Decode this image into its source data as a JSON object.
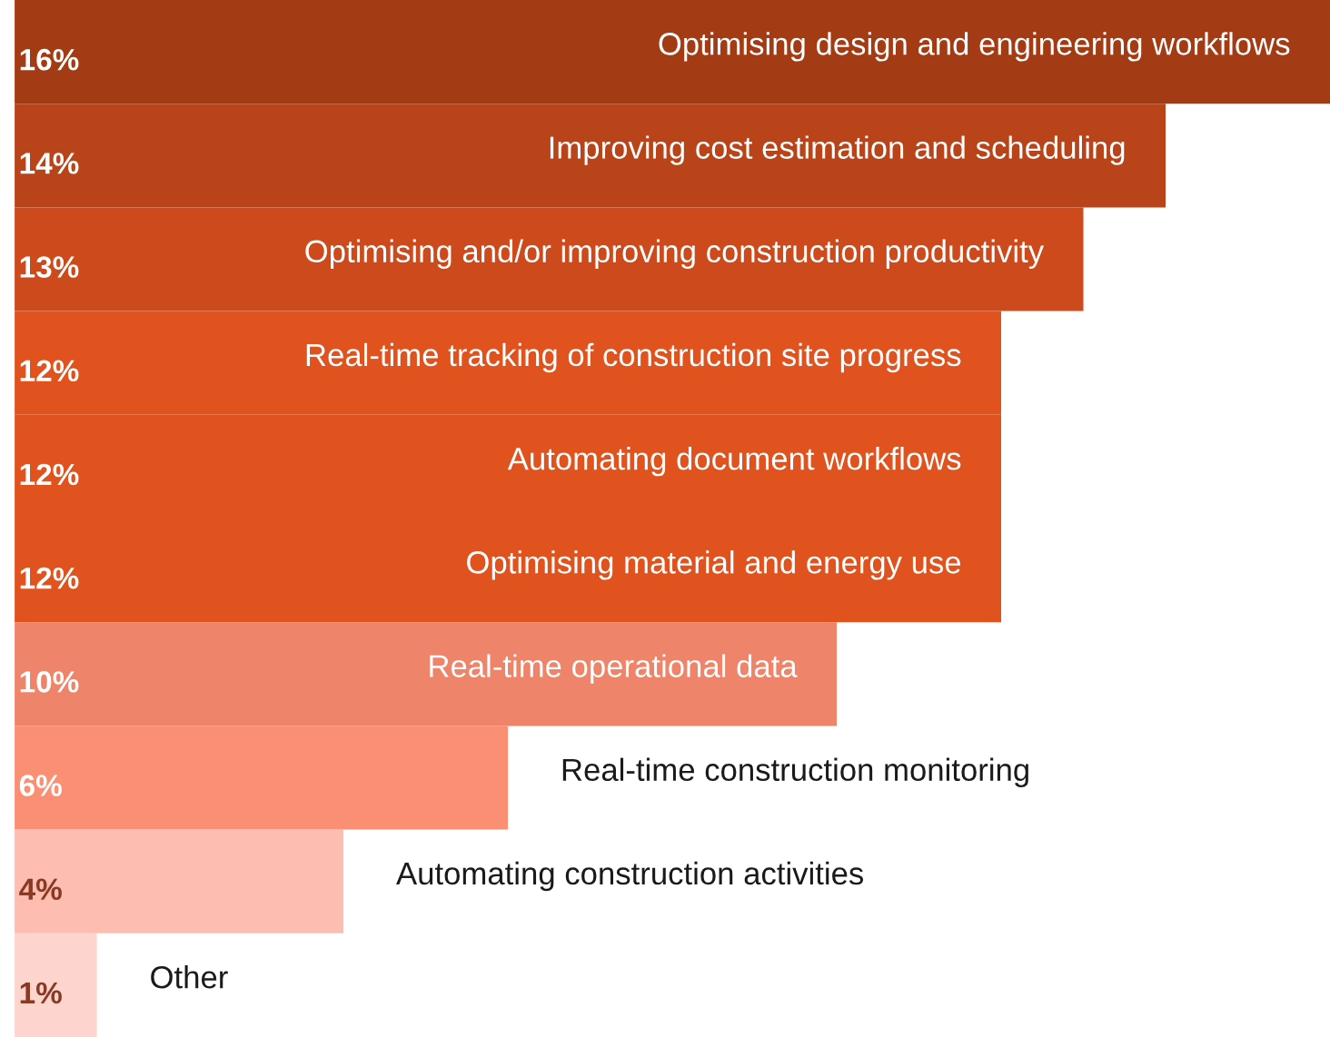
{
  "chart_data": {
    "type": "bar",
    "orientation": "horizontal",
    "categories": [
      "Optimising design and engineering workflows",
      "Improving cost estimation and scheduling",
      "Optimising and/or improving construction productivity",
      "Real-time tracking of construction site progress",
      "Automating document workflows",
      "Optimising material and energy use",
      "Real-time operational data",
      "Real-time construction monitoring",
      "Automating construction activities",
      "Other"
    ],
    "values": [
      16,
      14,
      13,
      12,
      12,
      12,
      10,
      6,
      4,
      1
    ],
    "value_labels": [
      "16%",
      "14%",
      "13%",
      "12%",
      "12%",
      "12%",
      "10%",
      "6%",
      "4%",
      "1%"
    ],
    "colors": [
      "#a33c14",
      "#b9441a",
      "#cc4a1c",
      "#e0531f",
      "#e0531f",
      "#e0531f",
      "#ee846a",
      "#fb8f74",
      "#fdbdb0",
      "#fdd5ce"
    ]
  }
}
